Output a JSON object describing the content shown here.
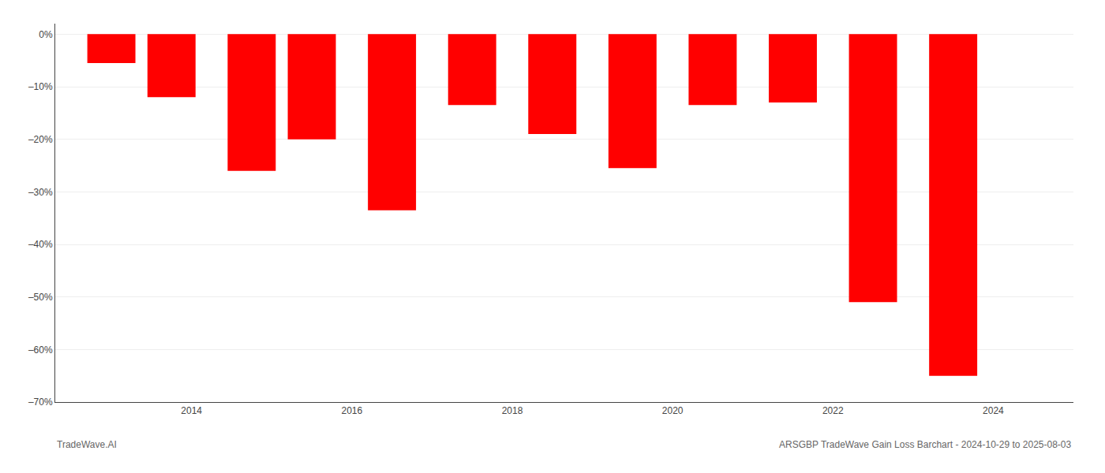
{
  "chart_data": {
    "type": "bar",
    "x": [
      2013.0,
      2013.75,
      2014.75,
      2015.5,
      2016.5,
      2017.5,
      2018.5,
      2019.5,
      2020.5,
      2021.5,
      2022.5,
      2023.5
    ],
    "values": [
      -5.5,
      -12.0,
      -26.0,
      -20.0,
      -33.5,
      -13.5,
      -19.0,
      -25.5,
      -13.5,
      -13.0,
      -51.0,
      -65.0
    ],
    "color": "#ff0000",
    "xlim": [
      2012.3,
      2025.0
    ],
    "xticks": [
      2014,
      2016,
      2018,
      2020,
      2022,
      2024
    ],
    "ylim": [
      -70,
      2
    ],
    "yticks": [
      {
        "value": 0,
        "label": "0%"
      },
      {
        "value": -10,
        "label": "–10%"
      },
      {
        "value": -20,
        "label": "–20%"
      },
      {
        "value": -30,
        "label": "–30%"
      },
      {
        "value": -40,
        "label": "–40%"
      },
      {
        "value": -50,
        "label": "–50%"
      },
      {
        "value": -60,
        "label": "–60%"
      },
      {
        "value": -70,
        "label": "–70%"
      }
    ],
    "grid": true,
    "annotations": [
      "TradeWave.AI",
      "ARSGBP TradeWave Gain Loss Barchart - 2024-10-29 to 2025-08-03"
    ]
  }
}
